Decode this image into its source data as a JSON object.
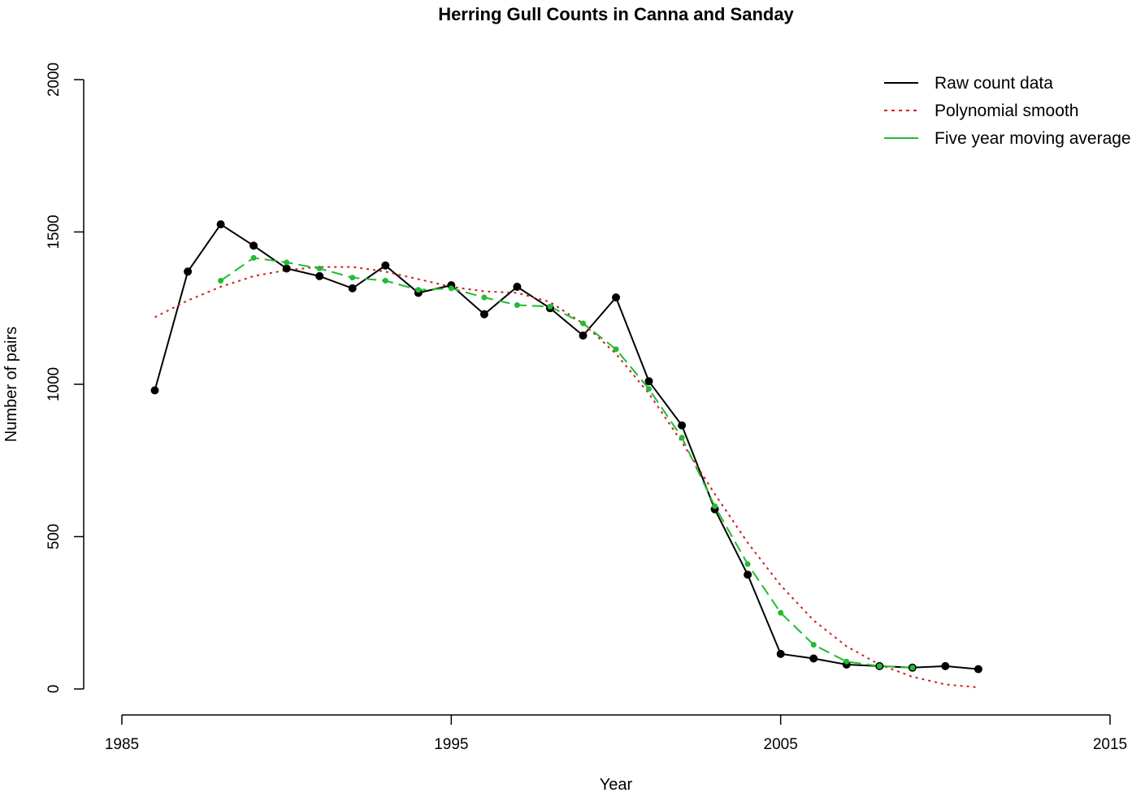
{
  "chart_data": {
    "type": "line",
    "title": "Herring Gull Counts in Canna and Sanday",
    "xlabel": "Year",
    "ylabel": "Number of pairs",
    "xlim": [
      1985,
      2015
    ],
    "ylim": [
      0,
      2000
    ],
    "xticks": [
      "1985",
      "1995",
      "2005",
      "2015"
    ],
    "yticks": [
      "0",
      "500",
      "1000",
      "1500",
      "2000"
    ],
    "legend_position": "top-right",
    "grid": false,
    "series": [
      {
        "name": "Raw count data",
        "color": "#000000",
        "line_style": "solid",
        "markers": true,
        "x": [
          1986,
          1987,
          1988,
          1989,
          1990,
          1991,
          1992,
          1993,
          1994,
          1995,
          1996,
          1997,
          1998,
          1999,
          2000,
          2001,
          2002,
          2003,
          2004,
          2005,
          2006,
          2007,
          2008,
          2009,
          2010,
          2011
        ],
        "y": [
          980,
          1370,
          1525,
          1455,
          1380,
          1355,
          1315,
          1390,
          1300,
          1325,
          1230,
          1320,
          1250,
          1160,
          1285,
          1010,
          865,
          590,
          375,
          115,
          100,
          80,
          75,
          70,
          75,
          65
        ]
      },
      {
        "name": "Polynomial smooth",
        "color": "#cc2020",
        "line_style": "dotted",
        "markers": false,
        "x": [
          1986,
          1987,
          1988,
          1989,
          1990,
          1991,
          1992,
          1993,
          1994,
          1995,
          1996,
          1997,
          1998,
          1999,
          2000,
          2001,
          2002,
          2003,
          2004,
          2005,
          2006,
          2007,
          2008,
          2009,
          2010,
          2011
        ],
        "y": [
          1220,
          1275,
          1320,
          1355,
          1375,
          1385,
          1385,
          1370,
          1345,
          1320,
          1305,
          1300,
          1270,
          1200,
          1100,
          970,
          810,
          640,
          480,
          340,
          225,
          140,
          80,
          40,
          15,
          5
        ]
      },
      {
        "name": "Five year moving average",
        "color": "#22bb33",
        "line_style": "dashed",
        "markers": true,
        "x": [
          1988,
          1989,
          1990,
          1991,
          1992,
          1993,
          1994,
          1995,
          1996,
          1997,
          1998,
          1999,
          2000,
          2001,
          2002,
          2003,
          2004,
          2005,
          2006,
          2007,
          2008,
          2009
        ],
        "y": [
          1340,
          1415,
          1400,
          1380,
          1350,
          1340,
          1310,
          1315,
          1285,
          1260,
          1255,
          1200,
          1115,
          985,
          825,
          600,
          410,
          250,
          145,
          90,
          75,
          70
        ]
      }
    ]
  }
}
